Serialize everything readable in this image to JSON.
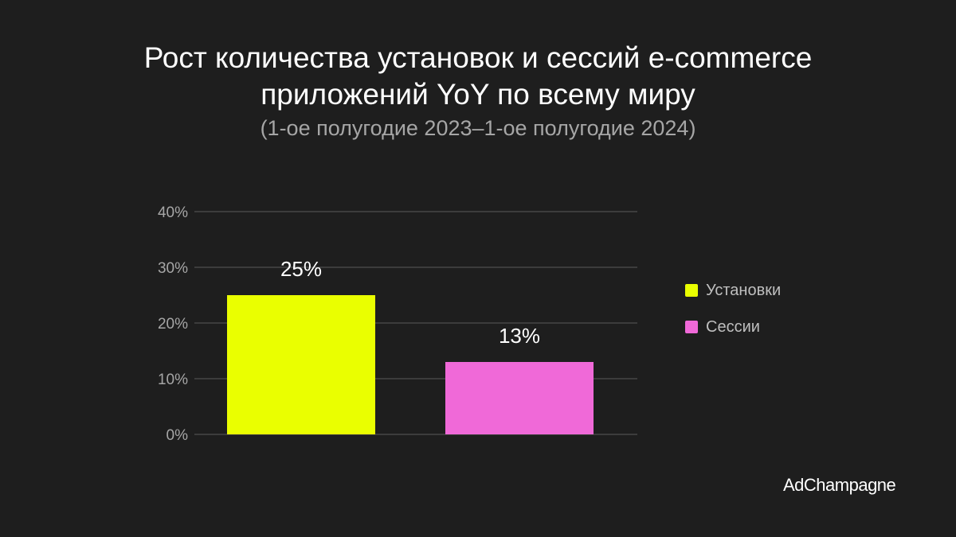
{
  "chart_data": {
    "type": "bar",
    "title_lines": [
      "Рост количества установок и сессий e-commerce",
      "приложений YoY по всему миру"
    ],
    "subtitle": "(1-ое полугодие 2023–1-ое полугодие 2024)",
    "categories": [
      "Установки",
      "Сессии"
    ],
    "values": [
      25,
      13
    ],
    "value_labels": [
      "25%",
      "13%"
    ],
    "colors": [
      "#eaff00",
      "#f069d8"
    ],
    "ylim": [
      0,
      40
    ],
    "yticks": [
      0,
      10,
      20,
      30,
      40
    ],
    "ytick_labels": [
      "0%",
      "10%",
      "20%",
      "30%",
      "40%"
    ],
    "grid": true,
    "legend": {
      "position": "right",
      "entries": [
        {
          "label": "Установки",
          "color": "#eaff00"
        },
        {
          "label": "Сессии",
          "color": "#f069d8"
        }
      ]
    }
  },
  "brand": "AdChampagne"
}
